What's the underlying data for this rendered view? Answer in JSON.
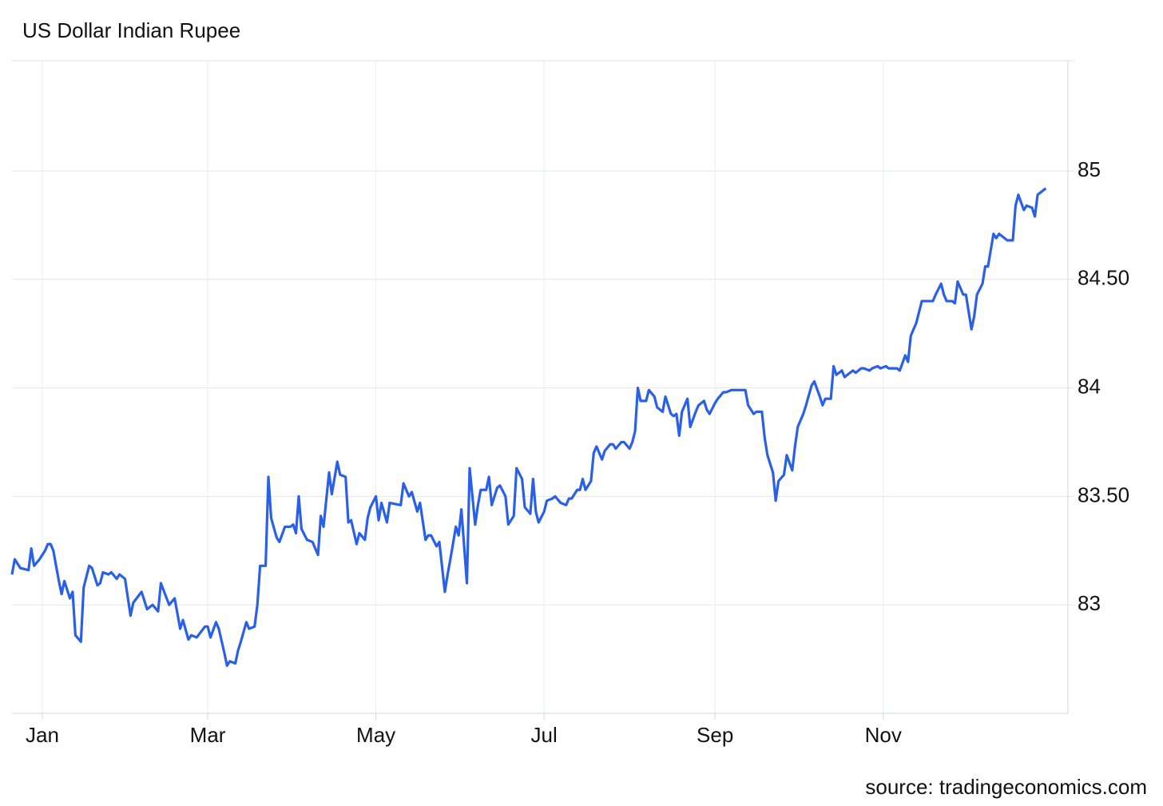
{
  "chart_data": {
    "type": "line",
    "title": "US Dollar Indian Rupee",
    "source": "source: tradingeconomics.com",
    "color": "#2a5fe8",
    "grid": true,
    "x": [
      -11,
      -10,
      -8,
      -5,
      -4,
      -3,
      -1,
      1,
      2,
      3,
      4,
      6,
      7,
      8,
      10,
      11,
      12,
      14,
      15,
      17,
      18,
      20,
      21,
      22,
      24,
      25,
      27,
      28,
      30,
      32,
      33,
      36,
      38,
      39,
      40,
      42,
      43,
      46,
      48,
      50,
      51,
      53,
      54,
      56,
      59,
      60,
      61,
      63,
      64,
      66,
      67,
      68,
      70,
      71,
      72,
      74,
      75,
      77,
      78,
      79,
      81,
      82,
      83,
      85,
      86,
      88,
      90,
      91,
      92,
      93,
      94,
      96,
      98,
      99,
      100,
      101,
      102,
      104,
      105,
      107,
      108,
      110,
      111,
      112,
      114,
      115,
      117,
      118,
      119,
      121,
      122,
      123,
      125,
      126,
      130,
      131,
      133,
      134,
      136,
      137,
      139,
      140,
      141,
      143,
      144,
      146,
      147,
      148,
      150,
      151,
      152,
      154,
      155,
      157,
      158,
      159,
      161,
      162,
      163,
      165,
      166,
      168,
      169,
      171,
      172,
      174,
      175,
      177,
      178,
      179,
      180,
      182,
      183,
      185,
      186,
      188,
      190,
      191,
      192,
      194,
      195,
      196,
      197,
      199,
      200,
      201,
      203,
      204,
      206,
      207,
      208,
      210,
      211,
      213,
      214,
      215,
      216,
      217,
      219,
      220,
      222,
      223,
      225,
      226,
      228,
      229,
      230,
      231,
      232,
      234,
      235,
      237,
      238,
      240,
      241,
      242,
      244,
      245,
      247,
      248,
      250,
      252,
      253,
      255,
      256,
      258,
      259,
      261,
      262,
      263,
      265,
      266,
      267,
      269,
      270,
      272,
      273,
      274,
      276,
      277,
      279,
      280,
      282,
      283,
      284,
      286,
      287,
      288,
      290,
      291,
      292,
      294,
      295,
      297,
      298,
      300,
      301,
      303,
      304,
      306,
      307,
      308,
      310,
      311,
      313,
      314,
      315,
      317,
      319,
      321,
      323,
      324,
      326,
      327,
      328,
      330,
      331,
      332,
      334,
      335,
      337,
      338,
      339,
      341,
      342,
      343,
      345,
      346,
      347,
      349,
      350,
      352,
      353,
      354,
      356,
      357,
      359,
      360,
      361,
      363,
      364
    ],
    "values": [
      83.14,
      83.21,
      83.17,
      83.16,
      83.26,
      83.18,
      83.21,
      83.25,
      83.28,
      83.28,
      83.25,
      83.11,
      83.05,
      83.11,
      83.03,
      83.06,
      82.86,
      82.83,
      83.08,
      83.18,
      83.17,
      83.09,
      83.1,
      83.15,
      83.14,
      83.15,
      83.12,
      83.14,
      83.12,
      82.95,
      83.01,
      83.06,
      82.98,
      82.99,
      83.0,
      82.97,
      83.1,
      83.0,
      83.03,
      82.89,
      82.93,
      82.84,
      82.86,
      82.85,
      82.9,
      82.9,
      82.85,
      82.92,
      82.89,
      82.78,
      82.72,
      82.74,
      82.73,
      82.79,
      82.83,
      82.92,
      82.89,
      82.9,
      83.0,
      83.18,
      83.18,
      83.59,
      83.4,
      83.31,
      83.29,
      83.36,
      83.36,
      83.37,
      83.33,
      83.5,
      83.35,
      83.3,
      83.29,
      83.26,
      83.23,
      83.41,
      83.36,
      83.61,
      83.51,
      83.66,
      83.6,
      83.59,
      83.38,
      83.39,
      83.28,
      83.33,
      83.3,
      83.4,
      83.45,
      83.5,
      83.39,
      83.47,
      83.38,
      83.47,
      83.46,
      83.56,
      83.5,
      83.52,
      83.43,
      83.47,
      83.3,
      83.32,
      83.32,
      83.27,
      83.29,
      83.06,
      83.14,
      83.21,
      83.36,
      83.32,
      83.44,
      83.1,
      83.63,
      83.37,
      83.46,
      83.53,
      83.53,
      83.59,
      83.46,
      83.54,
      83.55,
      83.5,
      83.37,
      83.41,
      83.63,
      83.58,
      83.45,
      83.42,
      83.58,
      83.43,
      83.38,
      83.43,
      83.48,
      83.49,
      83.5,
      83.47,
      83.46,
      83.49,
      83.49,
      83.53,
      83.53,
      83.58,
      83.53,
      83.57,
      83.7,
      83.73,
      83.67,
      83.71,
      83.74,
      83.74,
      83.72,
      83.75,
      83.75,
      83.72,
      83.75,
      83.8,
      84.0,
      83.94,
      83.94,
      83.99,
      83.96,
      83.91,
      83.89,
      83.96,
      83.88,
      83.87,
      83.88,
      83.78,
      83.89,
      83.95,
      83.82,
      83.89,
      83.92,
      83.94,
      83.9,
      83.88,
      83.93,
      83.95,
      83.98,
      83.98,
      83.99,
      83.99,
      83.99,
      83.99,
      83.92,
      83.88,
      83.89,
      83.89,
      83.77,
      83.69,
      83.61,
      83.48,
      83.57,
      83.6,
      83.69,
      83.62,
      83.73,
      83.82,
      83.88,
      83.92,
      84.01,
      84.03,
      83.96,
      83.92,
      83.95,
      83.95,
      84.1,
      84.06,
      84.08,
      84.05,
      84.06,
      84.08,
      84.07,
      84.09,
      84.09,
      84.08,
      84.09,
      84.1,
      84.09,
      84.1,
      84.09,
      84.09,
      84.09,
      84.08,
      84.15,
      84.12,
      84.24,
      84.3,
      84.4,
      84.4,
      84.4,
      84.43,
      84.48,
      84.43,
      84.4,
      84.4,
      84.39,
      84.49,
      84.43,
      84.43,
      84.27,
      84.33,
      84.43,
      84.48,
      84.56,
      84.56,
      84.71,
      84.69,
      84.71,
      84.69,
      84.68,
      84.68,
      84.84,
      84.89,
      84.82,
      84.84,
      84.83,
      84.79,
      84.89,
      84.91,
      84.92
    ],
    "xlim": [
      -11,
      372
    ],
    "xticks": [
      {
        "value": 0,
        "label": "Jan"
      },
      {
        "value": 60,
        "label": "Mar"
      },
      {
        "value": 121,
        "label": "May"
      },
      {
        "value": 182,
        "label": "Jul"
      },
      {
        "value": 244,
        "label": "Sep"
      },
      {
        "value": 305,
        "label": "Nov"
      }
    ],
    "ylim": [
      82.5,
      85.508
    ],
    "yticks": [
      83,
      {
        "value": 83.5,
        "label": "83.50"
      },
      84,
      {
        "value": 84.5,
        "label": "84.50"
      },
      85
    ]
  }
}
